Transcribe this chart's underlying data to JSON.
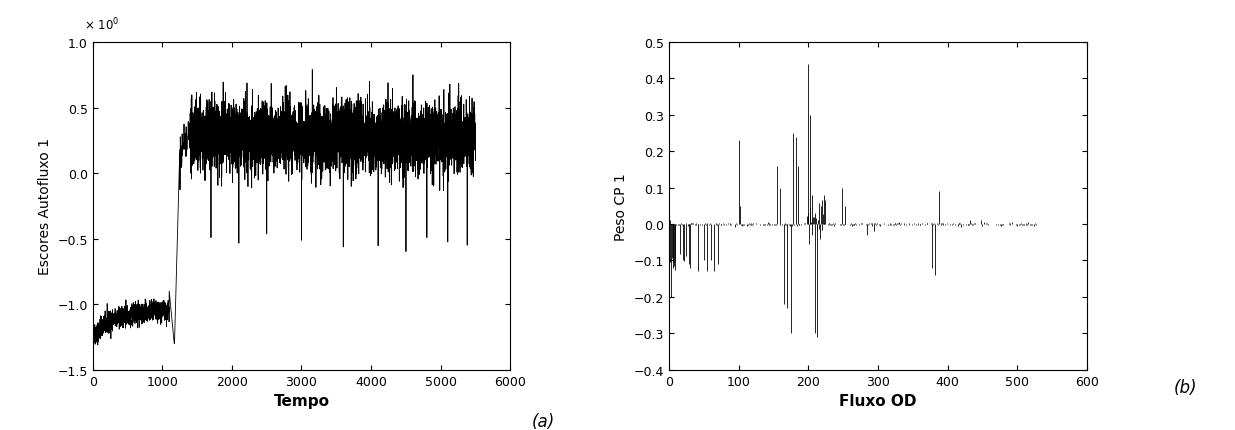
{
  "plot_a": {
    "xlabel": "Tempo",
    "ylabel": "Escores Autofluxo 1",
    "xlim": [
      0,
      6000
    ],
    "ylim": [
      -1.5,
      1.0
    ],
    "yticks": [
      -1.5,
      -1.0,
      -0.5,
      0,
      0.5,
      1.0
    ],
    "xticks": [
      0,
      1000,
      2000,
      3000,
      4000,
      5000,
      6000
    ]
  },
  "plot_b": {
    "xlabel": "Fluxo OD",
    "ylabel": "Peso CP 1",
    "xlim": [
      0,
      600
    ],
    "ylim": [
      -0.4,
      0.5
    ],
    "yticks": [
      -0.4,
      -0.3,
      -0.2,
      -0.1,
      0.0,
      0.1,
      0.2,
      0.3,
      0.4,
      0.5
    ],
    "xticks": [
      0,
      100,
      200,
      300,
      400,
      500,
      600
    ]
  },
  "label_a": "(a)",
  "label_b": "(b)",
  "line_color": "#000000",
  "line_width": 0.6,
  "background": "#ffffff"
}
